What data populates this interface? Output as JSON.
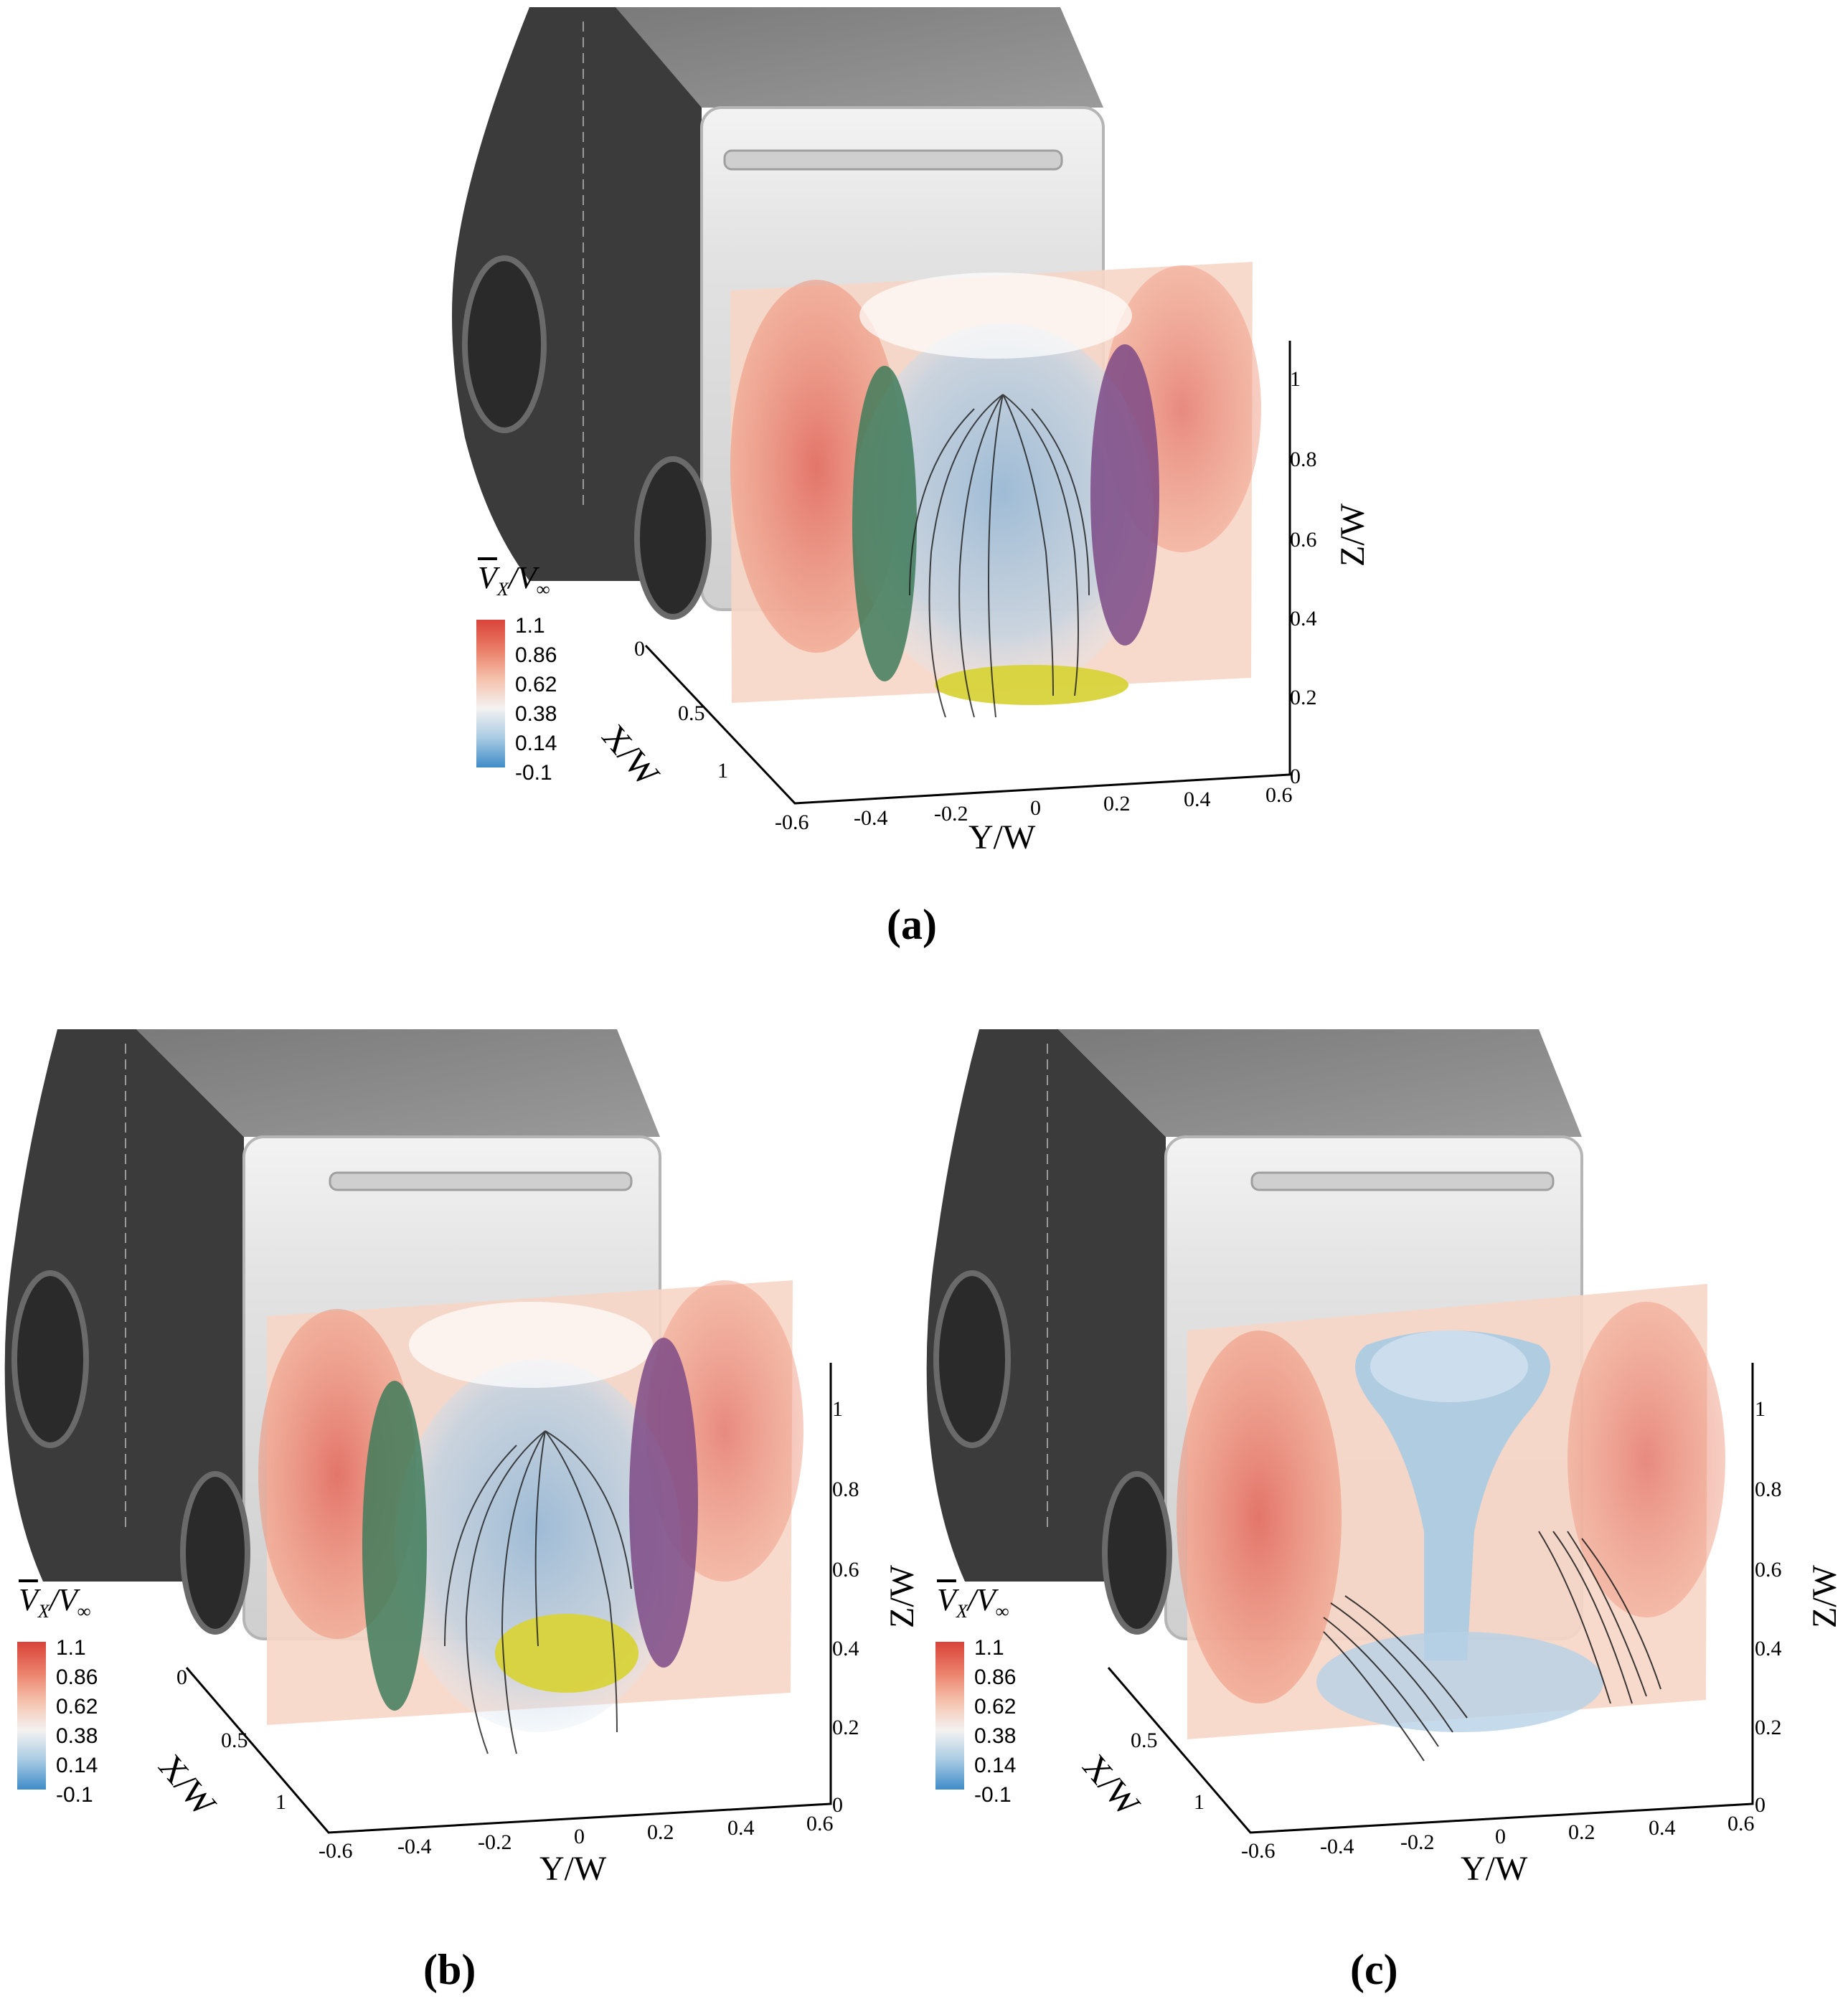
{
  "colorbar": {
    "title_base": "V",
    "title_sub": "X",
    "title_den": "/V",
    "title_den_sub": "∞",
    "levels": [
      "1.1",
      "0.86",
      "0.62",
      "0.38",
      "0.14",
      "-0.1"
    ],
    "colors": [
      "#d9433a",
      "#ea7d67",
      "#f5c1ac",
      "#f4f2f1",
      "#a9cbe3",
      "#3f8cc8"
    ]
  },
  "axes": {
    "x_label": "X/W",
    "y_label": "Y/W",
    "z_label": "Z/W",
    "x_ticks": [
      "0",
      "0.5",
      "1"
    ],
    "y_ticks": [
      "-0.6",
      "-0.4",
      "-0.2",
      "0",
      "0.2",
      "0.4",
      "0.6"
    ],
    "z_ticks": [
      "0",
      "0.2",
      "0.4",
      "0.6",
      "0.8",
      "1"
    ]
  },
  "panels": [
    {
      "id": "a",
      "caption": "(a)"
    },
    {
      "id": "b",
      "caption": "(b)"
    },
    {
      "id": "c",
      "caption": "(c)"
    }
  ],
  "colors": {
    "vehicle_side": "#3b3b3b",
    "vehicle_rear": "#d7d7d7",
    "vortex_left": "#3f7b5a",
    "vortex_right": "#7c4a86",
    "vortex_bottom": "#d8d33a",
    "streamlines": "#1a1a1a"
  }
}
